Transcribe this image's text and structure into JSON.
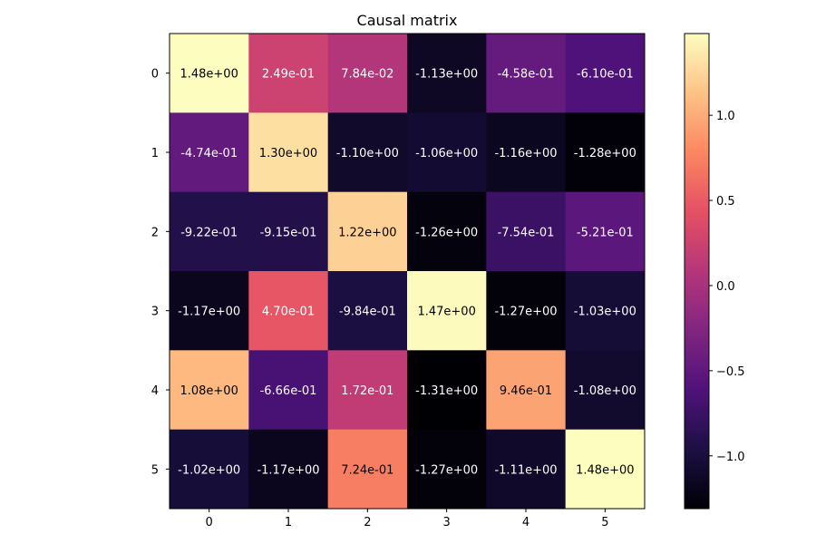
{
  "chart_data": {
    "type": "heatmap",
    "title": "Causal matrix",
    "xlabel": "",
    "ylabel": "",
    "x_ticks": [
      "0",
      "1",
      "2",
      "3",
      "4",
      "5"
    ],
    "y_ticks": [
      "0",
      "1",
      "2",
      "3",
      "4",
      "5"
    ],
    "values": [
      [
        1.48,
        0.249,
        0.0784,
        -1.13,
        -0.458,
        -0.61
      ],
      [
        -0.474,
        1.3,
        -1.1,
        -1.06,
        -1.16,
        -1.28
      ],
      [
        -0.922,
        -0.915,
        1.22,
        -1.26,
        -0.754,
        -0.521
      ],
      [
        -1.17,
        0.47,
        -0.984,
        1.47,
        -1.27,
        -1.03
      ],
      [
        1.08,
        -0.666,
        0.172,
        -1.31,
        0.946,
        -1.08
      ],
      [
        -1.02,
        -1.17,
        0.724,
        -1.27,
        -1.11,
        1.48
      ]
    ],
    "labels": [
      [
        "1.48e+00",
        "2.49e-01",
        "7.84e-02",
        "-1.13e+00",
        "-4.58e-01",
        "-6.10e-01"
      ],
      [
        "-4.74e-01",
        "1.30e+00",
        "-1.10e+00",
        "-1.06e+00",
        "-1.16e+00",
        "-1.28e+00"
      ],
      [
        "-9.22e-01",
        "-9.15e-01",
        "1.22e+00",
        "-1.26e+00",
        "-7.54e-01",
        "-5.21e-01"
      ],
      [
        "-1.17e+00",
        "4.70e-01",
        "-9.84e-01",
        "1.47e+00",
        "-1.27e+00",
        "-1.03e+00"
      ],
      [
        "1.08e+00",
        "-6.66e-01",
        "1.72e-01",
        "-1.31e+00",
        "9.46e-01",
        "-1.08e+00"
      ],
      [
        "-1.02e+00",
        "-1.17e+00",
        "7.24e-01",
        "-1.27e+00",
        "-1.11e+00",
        "1.48e+00"
      ]
    ],
    "colormap": "magma",
    "vmin": -1.31,
    "vmax": 1.48,
    "colorbar": {
      "ticks": [
        1.0,
        0.5,
        0.0,
        -0.5,
        -1.0
      ],
      "tick_labels": [
        "1.0",
        "0.5",
        "0.0",
        "−0.5",
        "−1.0"
      ]
    },
    "grid": false,
    "legend": "none"
  }
}
